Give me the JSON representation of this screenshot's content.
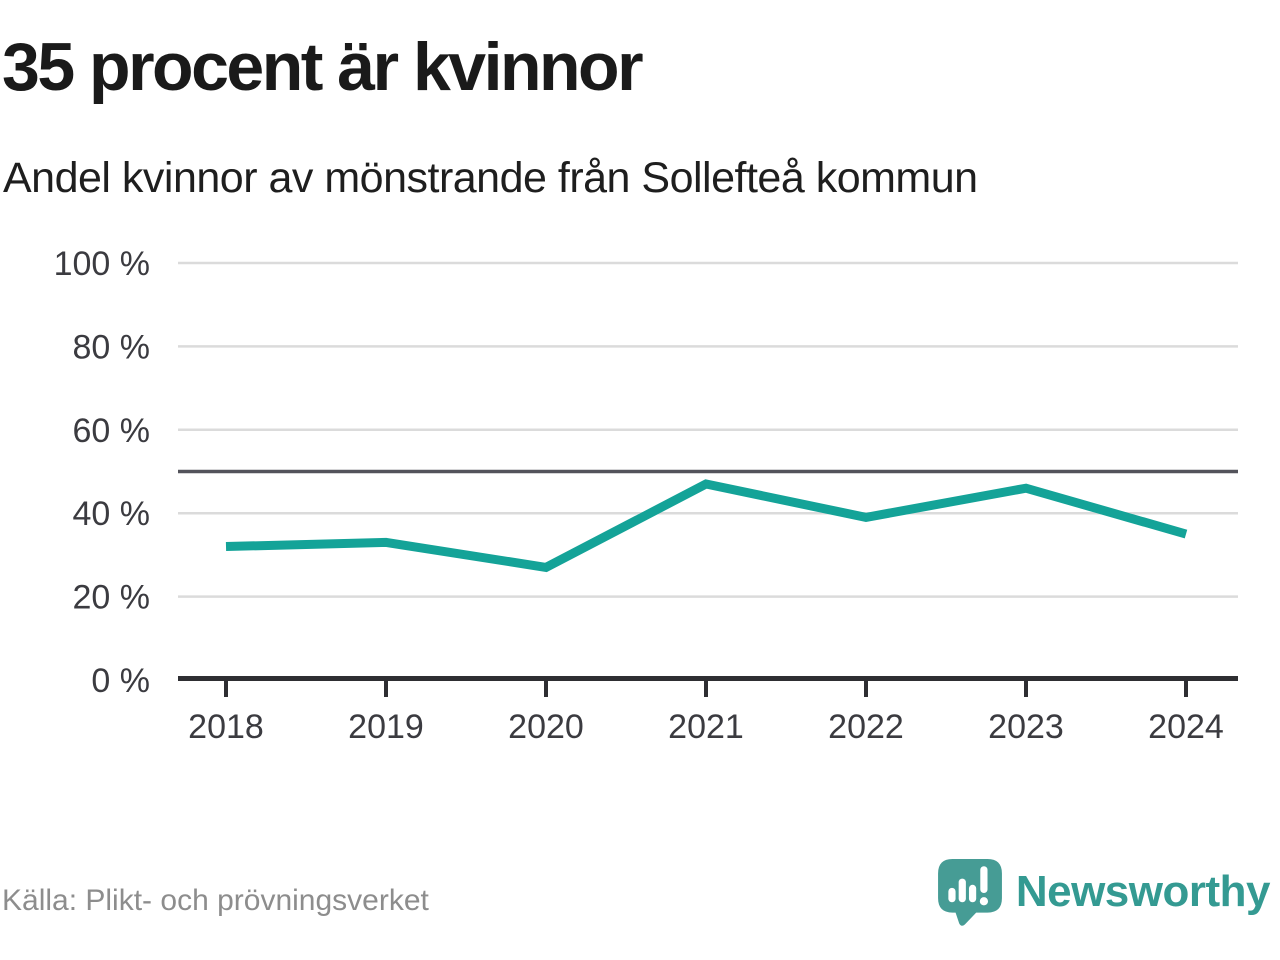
{
  "header": {
    "title": "35 procent är kvinnor",
    "subtitle": "Andel kvinnor av mönstrande från Sollefteå kommun"
  },
  "footer": {
    "source": "Källa: Plikt- och prövningsverket",
    "brand": "Newsworthy",
    "brand_text_color": "#349a92",
    "brand_mark_color": "#469c95",
    "logo_icon": "newsworthy-speech-bubble-bar-chart-icon"
  },
  "chart_data": {
    "type": "line",
    "title": "35 procent är kvinnor",
    "subtitle": "Andel kvinnor av mönstrande från Sollefteå kommun",
    "categories": [
      "2018",
      "2019",
      "2020",
      "2021",
      "2022",
      "2023",
      "2024"
    ],
    "series": [
      {
        "name": "Andel kvinnor av mönstrande",
        "values": [
          32,
          33,
          27,
          47,
          39,
          46,
          35
        ]
      }
    ],
    "unit": "%",
    "xlabel": "",
    "ylabel": "",
    "ylim": [
      0,
      100
    ],
    "yticks": [
      {
        "value": 0,
        "label": "0 %"
      },
      {
        "value": 20,
        "label": "20 %"
      },
      {
        "value": 40,
        "label": "40 %"
      },
      {
        "value": 60,
        "label": "60 %"
      },
      {
        "value": 80,
        "label": "80 %"
      },
      {
        "value": 100,
        "label": "100 %"
      }
    ],
    "reference_line": {
      "value": 50
    },
    "grid": true,
    "legend": "none",
    "line_color": "#14a398",
    "grid_color": "#dbdbdb",
    "reference_line_color": "#53535b",
    "axis_color": "#2e2e32"
  }
}
